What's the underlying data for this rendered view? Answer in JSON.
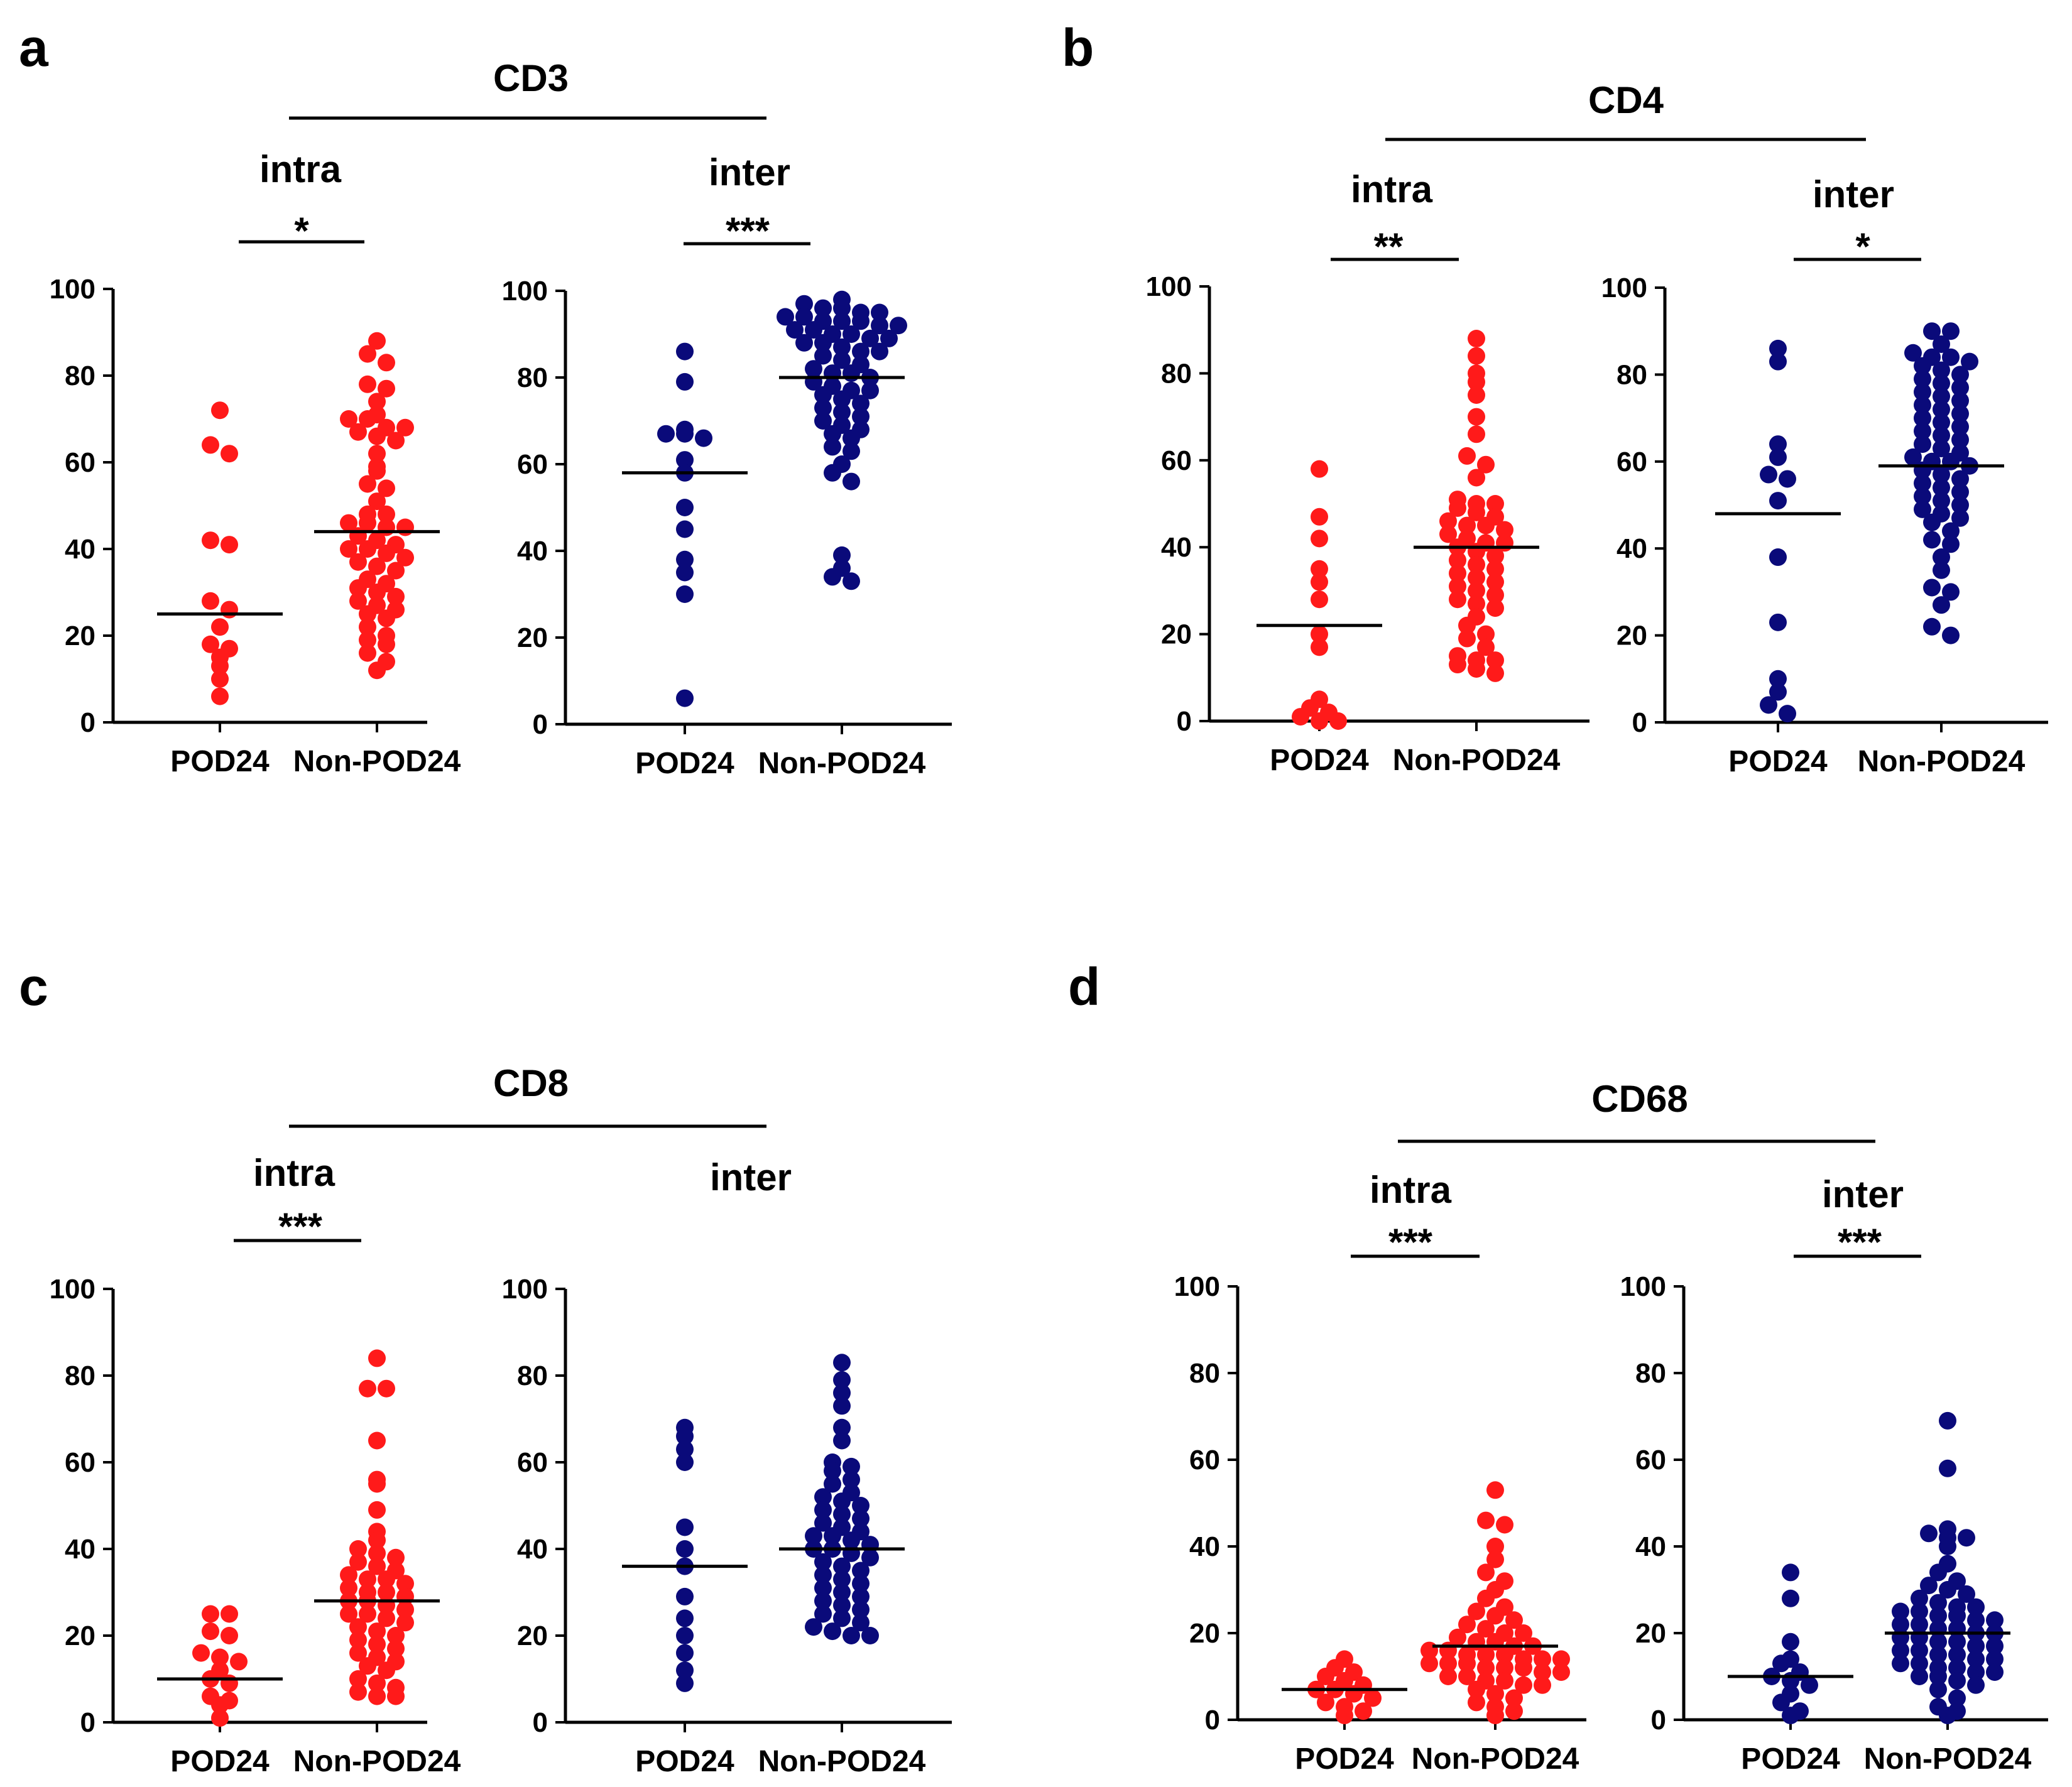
{
  "colors": {
    "intra": "#ff1a1a",
    "inter": "#0a0a7a",
    "axis": "#000000"
  },
  "chart_data": [
    {
      "panel": "a",
      "type": "scatter",
      "title": "CD3",
      "subplots": [
        {
          "region": "intra",
          "significance": "*",
          "color_key": "intra",
          "categories": [
            "POD24",
            "Non-POD24"
          ],
          "ylim": [
            0,
            100
          ],
          "yticks": [
            0,
            20,
            40,
            60,
            80,
            100
          ],
          "yticklabels": [
            "0",
            "20",
            "40",
            "60",
            "80",
            "100"
          ],
          "series": [
            {
              "name": "POD24",
              "median": 25,
              "values": [
                72,
                64,
                62,
                42,
                41,
                28,
                26,
                22,
                18,
                17,
                15,
                13,
                10,
                6
              ]
            },
            {
              "name": "Non-POD24",
              "median": 44,
              "values": [
                88,
                85,
                83,
                78,
                77,
                74,
                71,
                70,
                70,
                68,
                68,
                67,
                66,
                65,
                62,
                59,
                58,
                55,
                54,
                51,
                48,
                48,
                46,
                46,
                45,
                45,
                43,
                42,
                41,
                40,
                40,
                39,
                38,
                37,
                36,
                35,
                33,
                32,
                31,
                30,
                29,
                28,
                27,
                26,
                25,
                24,
                22,
                20,
                19,
                18,
                16,
                14,
                12
              ]
            }
          ]
        },
        {
          "region": "inter",
          "significance": "***",
          "color_key": "inter",
          "categories": [
            "POD24",
            "Non-POD24"
          ],
          "ylim": [
            0,
            100
          ],
          "yticks": [
            0,
            20,
            40,
            60,
            80,
            100
          ],
          "yticklabels": [
            "0",
            "20",
            "40",
            "60",
            "80",
            "100"
          ],
          "series": [
            {
              "name": "POD24",
              "median": 58,
              "values": [
                86,
                79,
                68,
                67,
                67,
                66,
                61,
                58,
                50,
                45,
                38,
                35,
                30,
                6
              ]
            },
            {
              "name": "Non-POD24",
              "median": 80,
              "values": [
                98,
                97,
                96,
                96,
                95,
                95,
                94,
                94,
                93,
                93,
                93,
                92,
                92,
                91,
                91,
                90,
                90,
                89,
                89,
                88,
                88,
                87,
                86,
                86,
                85,
                84,
                83,
                82,
                81,
                81,
                80,
                79,
                78,
                77,
                77,
                76,
                75,
                74,
                73,
                72,
                71,
                70,
                69,
                68,
                67,
                66,
                64,
                63,
                60,
                58,
                56,
                39,
                36,
                34,
                33
              ]
            }
          ]
        }
      ]
    },
    {
      "panel": "b",
      "type": "scatter",
      "title": "CD4",
      "subplots": [
        {
          "region": "intra",
          "significance": "**",
          "color_key": "intra",
          "categories": [
            "POD24",
            "Non-POD24"
          ],
          "ylim": [
            0,
            100
          ],
          "yticks": [
            0,
            20,
            40,
            60,
            80,
            100
          ],
          "yticklabels": [
            "0",
            "20",
            "40",
            "60",
            "80",
            "100"
          ],
          "series": [
            {
              "name": "POD24",
              "median": 22,
              "values": [
                58,
                47,
                42,
                35,
                32,
                28,
                20,
                17,
                5,
                3,
                2,
                1,
                0,
                0
              ]
            },
            {
              "name": "Non-POD24",
              "median": 40,
              "values": [
                88,
                84,
                80,
                78,
                75,
                70,
                66,
                61,
                59,
                56,
                51,
                50,
                50,
                49,
                48,
                47,
                46,
                45,
                45,
                44,
                43,
                42,
                41,
                41,
                40,
                39,
                38,
                37,
                36,
                35,
                34,
                33,
                32,
                31,
                30,
                29,
                28,
                27,
                26,
                24,
                22,
                20,
                19,
                17,
                15,
                14,
                14,
                13,
                12,
                11
              ]
            }
          ]
        },
        {
          "region": "inter",
          "significance": "*",
          "color_key": "inter",
          "categories": [
            "POD24",
            "Non-POD24"
          ],
          "ylim": [
            0,
            100
          ],
          "yticks": [
            0,
            20,
            40,
            60,
            80,
            100
          ],
          "yticklabels": [
            "0",
            "20",
            "40",
            "60",
            "80",
            "100"
          ],
          "series": [
            {
              "name": "POD24",
              "median": 48,
              "values": [
                86,
                83,
                64,
                61,
                57,
                56,
                51,
                38,
                23,
                10,
                7,
                4,
                2
              ]
            },
            {
              "name": "Non-POD24",
              "median": 59,
              "values": [
                90,
                90,
                87,
                85,
                84,
                84,
                83,
                82,
                81,
                80,
                79,
                78,
                77,
                76,
                75,
                74,
                73,
                72,
                71,
                70,
                69,
                68,
                67,
                66,
                65,
                64,
                63,
                62,
                61,
                60,
                60,
                59,
                58,
                57,
                56,
                55,
                54,
                53,
                52,
                51,
                50,
                49,
                48,
                47,
                46,
                44,
                42,
                41,
                38,
                35,
                31,
                30,
                27,
                22,
                20
              ]
            }
          ]
        }
      ]
    },
    {
      "panel": "c",
      "type": "scatter",
      "title": "CD8",
      "subplots": [
        {
          "region": "intra",
          "significance": "***",
          "color_key": "intra",
          "categories": [
            "POD24",
            "Non-POD24"
          ],
          "ylim": [
            0,
            100
          ],
          "yticks": [
            0,
            20,
            40,
            60,
            80,
            100
          ],
          "yticklabels": [
            "0",
            "20",
            "40",
            "60",
            "80",
            "100"
          ],
          "series": [
            {
              "name": "POD24",
              "median": 10,
              "values": [
                25,
                25,
                21,
                20,
                16,
                15,
                14,
                12,
                10,
                9,
                6,
                5,
                4,
                1
              ]
            },
            {
              "name": "Non-POD24",
              "median": 28,
              "values": [
                84,
                77,
                77,
                65,
                56,
                55,
                49,
                44,
                42,
                40,
                39,
                38,
                37,
                36,
                35,
                34,
                33,
                33,
                32,
                31,
                30,
                30,
                29,
                28,
                28,
                27,
                26,
                25,
                25,
                24,
                23,
                22,
                21,
                20,
                19,
                18,
                17,
                16,
                15,
                14,
                13,
                12,
                10,
                9,
                8,
                7,
                6,
                6
              ]
            }
          ]
        },
        {
          "region": "inter",
          "significance": "",
          "color_key": "inter",
          "categories": [
            "POD24",
            "Non-POD24"
          ],
          "ylim": [
            0,
            100
          ],
          "yticks": [
            0,
            20,
            40,
            60,
            80,
            100
          ],
          "yticklabels": [
            "0",
            "20",
            "40",
            "60",
            "80",
            "100"
          ],
          "series": [
            {
              "name": "POD24",
              "median": 36,
              "values": [
                68,
                66,
                63,
                60,
                45,
                40,
                36,
                29,
                24,
                20,
                16,
                12,
                9
              ]
            },
            {
              "name": "Non-POD24",
              "median": 40,
              "values": [
                83,
                79,
                76,
                73,
                68,
                65,
                60,
                59,
                58,
                56,
                55,
                53,
                52,
                51,
                50,
                49,
                48,
                47,
                46,
                45,
                44,
                43,
                43,
                42,
                41,
                40,
                40,
                39,
                38,
                37,
                36,
                35,
                34,
                33,
                32,
                31,
                30,
                29,
                28,
                27,
                26,
                25,
                24,
                23,
                22,
                21,
                20,
                20
              ]
            }
          ]
        }
      ]
    },
    {
      "panel": "d",
      "type": "scatter",
      "title": "CD68",
      "subplots": [
        {
          "region": "intra",
          "significance": "***",
          "color_key": "intra",
          "categories": [
            "POD24",
            "Non-POD24"
          ],
          "ylim": [
            0,
            100
          ],
          "yticks": [
            0,
            20,
            40,
            60,
            80,
            100
          ],
          "yticklabels": [
            "0",
            "20",
            "40",
            "60",
            "80",
            "100"
          ],
          "series": [
            {
              "name": "POD24",
              "median": 7,
              "values": [
                14,
                12,
                11,
                10,
                9,
                8,
                7,
                7,
                6,
                5,
                4,
                3,
                2,
                1
              ]
            },
            {
              "name": "Non-POD24",
              "median": 17,
              "values": [
                53,
                46,
                45,
                40,
                37,
                34,
                32,
                30,
                28,
                26,
                25,
                24,
                23,
                22,
                21,
                20,
                20,
                19,
                18,
                18,
                17,
                17,
                16,
                16,
                15,
                15,
                15,
                14,
                14,
                14,
                13,
                13,
                13,
                12,
                12,
                12,
                11,
                11,
                10,
                10,
                9,
                9,
                8,
                8,
                7,
                6,
                5,
                4,
                3,
                2,
                1
              ]
            }
          ]
        },
        {
          "region": "inter",
          "significance": "***",
          "color_key": "inter",
          "categories": [
            "POD24",
            "Non-POD24"
          ],
          "ylim": [
            0,
            100
          ],
          "yticks": [
            0,
            20,
            40,
            60,
            80,
            100
          ],
          "yticklabels": [
            "0",
            "20",
            "40",
            "60",
            "80",
            "100"
          ],
          "series": [
            {
              "name": "POD24",
              "median": 10,
              "values": [
                34,
                28,
                18,
                14,
                13,
                11,
                10,
                9,
                8,
                6,
                4,
                2,
                1
              ]
            },
            {
              "name": "Non-POD24",
              "median": 20,
              "values": [
                69,
                58,
                44,
                43,
                42,
                42,
                40,
                36,
                34,
                32,
                31,
                30,
                29,
                28,
                27,
                26,
                26,
                25,
                25,
                24,
                24,
                23,
                23,
                22,
                22,
                21,
                21,
                20,
                20,
                19,
                19,
                18,
                18,
                17,
                17,
                16,
                16,
                15,
                15,
                14,
                14,
                13,
                13,
                12,
                12,
                11,
                11,
                10,
                10,
                9,
                8,
                7,
                5,
                3,
                2,
                1
              ]
            }
          ]
        }
      ]
    }
  ]
}
